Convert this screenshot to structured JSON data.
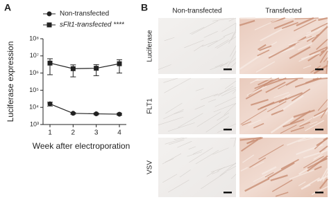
{
  "chart_data": {
    "type": "line",
    "panel_label": "A",
    "x": [
      1,
      2,
      3,
      4
    ],
    "xlim": [
      0.7,
      4.3
    ],
    "xticks": [
      1,
      2,
      3,
      4
    ],
    "xlabel": "Week after electroporation",
    "ylabel": "Luciferase expression",
    "log_y": true,
    "ylim": [
      1000,
      100000000
    ],
    "yticks": [
      {
        "value": 1000,
        "label": "10³"
      },
      {
        "value": 10000,
        "label": "10⁴"
      },
      {
        "value": 100000,
        "label": "10⁵"
      },
      {
        "value": 1000000,
        "label": "10⁶"
      },
      {
        "value": 10000000,
        "label": "10⁷"
      },
      {
        "value": 100000000,
        "label": "10⁸"
      }
    ],
    "legend": "top-left",
    "series": [
      {
        "name": "Non-transfected",
        "color": "#222222",
        "marker": "circle",
        "values": [
          16000,
          4500,
          4200,
          4000
        ],
        "errors": [
          4000,
          500,
          500,
          500
        ]
      },
      {
        "name": "sFlt1-transfected ****",
        "color": "#222222",
        "marker": "square",
        "values": [
          3800000,
          1800000,
          1900000,
          3500000
        ],
        "errors": [
          3000000,
          1200000,
          1200000,
          2500000
        ]
      }
    ]
  },
  "panel_b": {
    "label": "B",
    "columns": [
      "Non-transfected",
      "Transfected"
    ],
    "rows": [
      "Luciferase",
      "FLT1",
      "VSV"
    ]
  }
}
